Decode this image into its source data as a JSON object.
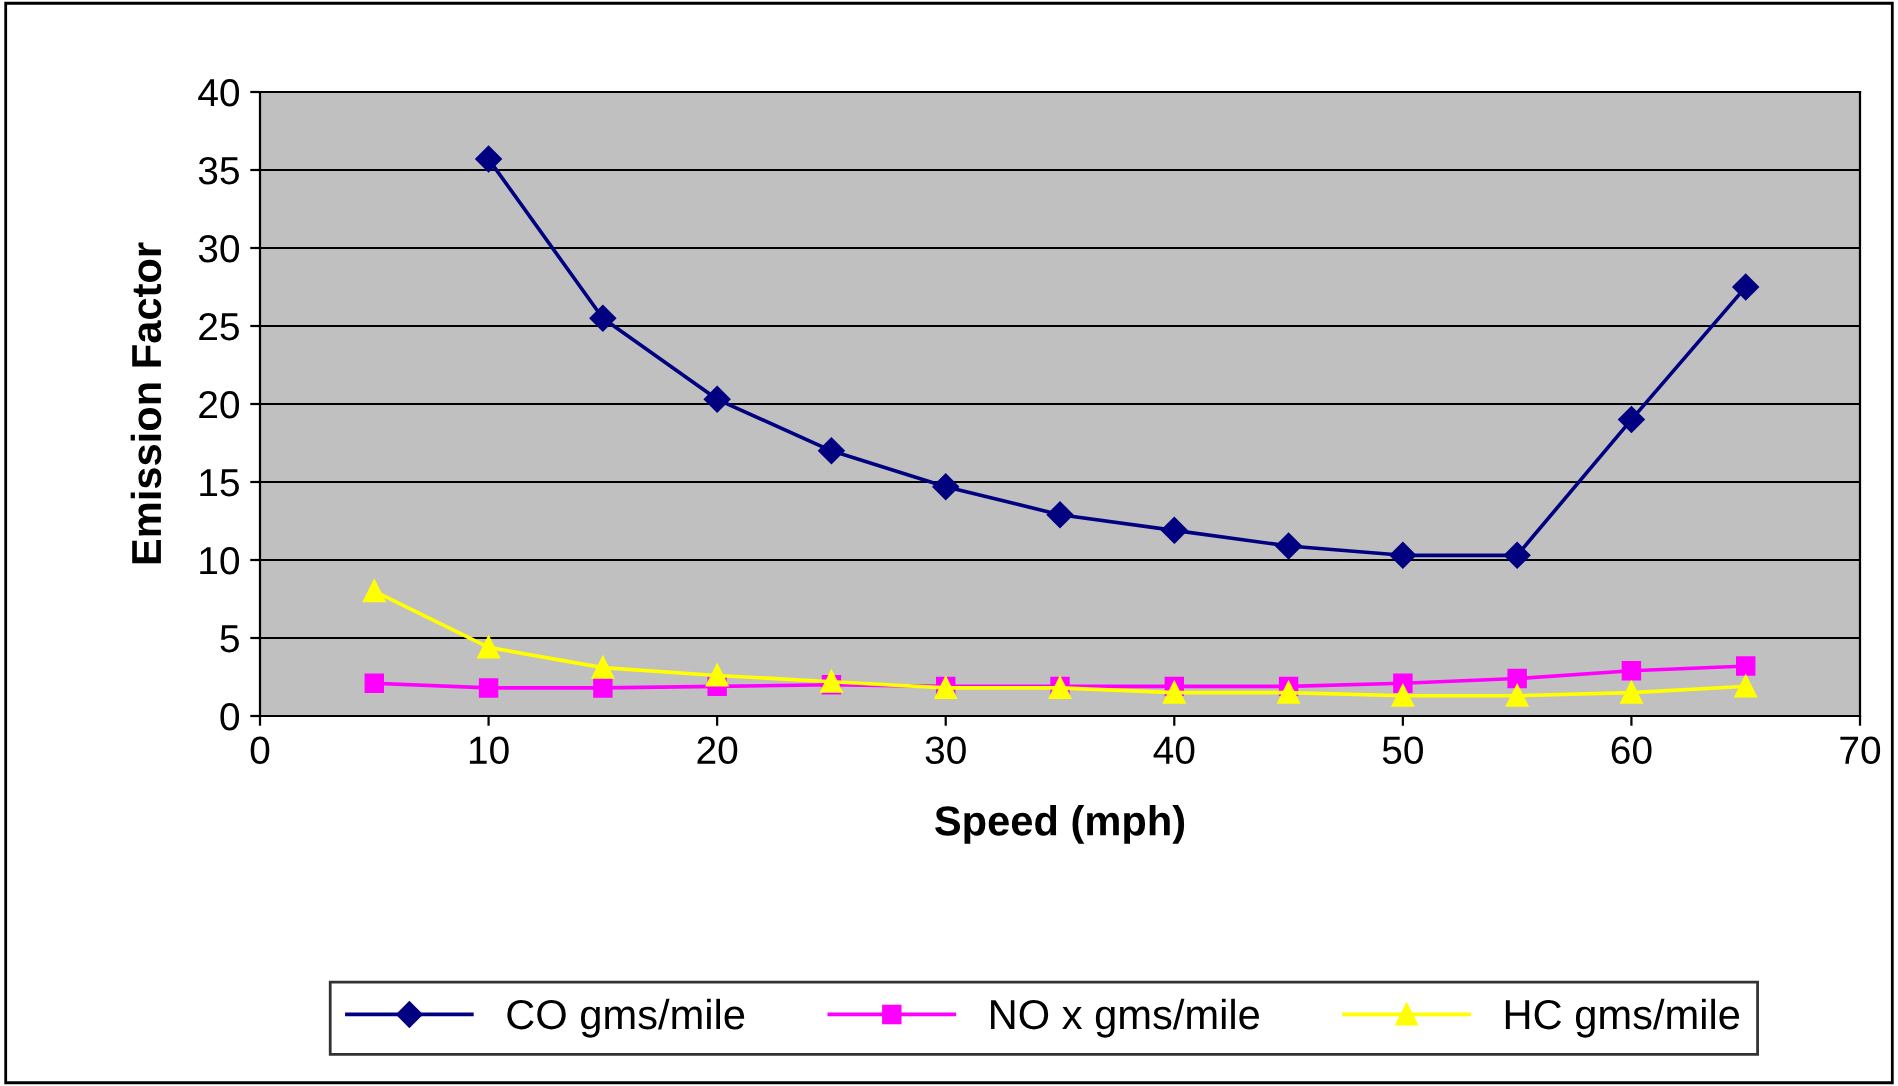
{
  "chart_data": {
    "type": "line",
    "xlabel": "Speed (mph)",
    "ylabel": "Emission Factor",
    "x": [
      5,
      10,
      15,
      20,
      25,
      30,
      35,
      40,
      45,
      50,
      55,
      60,
      65
    ],
    "series": [
      {
        "name": "CO gms/mile",
        "color": "#000080",
        "marker": "diamond",
        "values": [
          null,
          35.7,
          25.5,
          20.3,
          17.0,
          14.7,
          12.9,
          11.9,
          10.9,
          10.3,
          10.3,
          19.0,
          27.5
        ]
      },
      {
        "name": "NO x gms/mile",
        "color": "#ff00ff",
        "marker": "square",
        "values": [
          2.1,
          1.8,
          1.8,
          1.9,
          2.0,
          1.9,
          1.9,
          1.9,
          1.9,
          2.1,
          2.4,
          2.9,
          3.2
        ]
      },
      {
        "name": "HC gms/mile",
        "color": "#ffff00",
        "marker": "triangle",
        "values": [
          8.0,
          4.4,
          3.1,
          2.6,
          2.2,
          1.8,
          1.8,
          1.5,
          1.5,
          1.3,
          1.3,
          1.5,
          1.9
        ]
      }
    ],
    "xlim": [
      0,
      70
    ],
    "xticks": [
      0,
      10,
      20,
      30,
      40,
      50,
      60,
      70
    ],
    "ylim": [
      0,
      40
    ],
    "yticks": [
      0,
      5,
      10,
      15,
      20,
      25,
      30,
      35,
      40
    ],
    "grid": "y",
    "legend": "bottom",
    "line_style": "solid"
  }
}
